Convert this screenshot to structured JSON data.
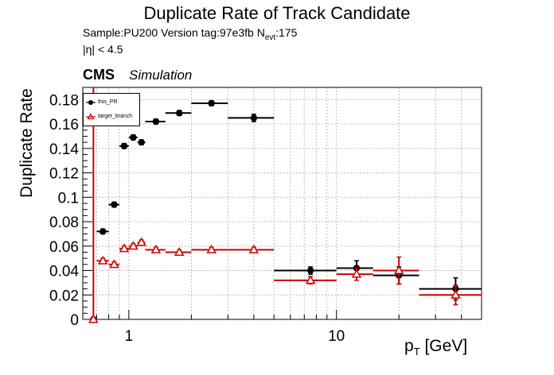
{
  "header": {
    "title": "Duplicate Rate of Track Candidate",
    "sample_label": "Sample:PU200   Version tag:97e3fb  N",
    "nevt_sub": "evt",
    "nevt_value": ":175",
    "eta_cut": "|η| < 4.5",
    "cms": "CMS",
    "simulation": "Simulation"
  },
  "colors": {
    "this_PR": "#000000",
    "target_branch": "#cc0000",
    "grid": "#bdbdbd"
  },
  "chart_data": {
    "type": "scatter",
    "title": "Duplicate Rate of Track Candidate",
    "xlabel": "p",
    "xlabel_sub": "T",
    "xlabel_unit": " [GeV]",
    "ylabel": "Duplicate Rate",
    "xscale": "log",
    "xlim": [
      0.6,
      50
    ],
    "ylim": [
      0,
      0.19
    ],
    "grid": true,
    "legend_position": "top-left",
    "yticks": [
      0,
      0.02,
      0.04,
      0.06,
      0.08,
      0.1,
      0.12,
      0.14,
      0.16,
      0.18
    ],
    "ytick_labels": [
      "0",
      "0.02",
      "0.04",
      "0.06",
      "0.08",
      "0.1",
      "0.12",
      "0.14",
      "0.16",
      "0.18"
    ],
    "xticks": [
      1,
      10
    ],
    "xtick_labels": [
      "1",
      "10"
    ],
    "series": [
      {
        "name": "this_PR",
        "marker": "circle",
        "points": [
          {
            "x": 0.675,
            "xlo": 0.65,
            "xhi": 0.7,
            "y": 0.0,
            "err": 0.0
          },
          {
            "x": 0.75,
            "xlo": 0.7,
            "xhi": 0.8,
            "y": 0.072,
            "err": 0.002
          },
          {
            "x": 0.85,
            "xlo": 0.8,
            "xhi": 0.9,
            "y": 0.094,
            "err": 0.002
          },
          {
            "x": 0.95,
            "xlo": 0.9,
            "xhi": 1.0,
            "y": 0.142,
            "err": 0.002
          },
          {
            "x": 1.05,
            "xlo": 1.0,
            "xhi": 1.1,
            "y": 0.149,
            "err": 0.002
          },
          {
            "x": 1.15,
            "xlo": 1.1,
            "xhi": 1.2,
            "y": 0.145,
            "err": 0.002
          },
          {
            "x": 1.35,
            "xlo": 1.2,
            "xhi": 1.5,
            "y": 0.162,
            "err": 0.002
          },
          {
            "x": 1.75,
            "xlo": 1.5,
            "xhi": 2.0,
            "y": 0.169,
            "err": 0.002
          },
          {
            "x": 2.5,
            "xlo": 2.0,
            "xhi": 3.0,
            "y": 0.177,
            "err": 0.002
          },
          {
            "x": 4.0,
            "xlo": 3.0,
            "xhi": 5.0,
            "y": 0.165,
            "err": 0.003
          },
          {
            "x": 7.5,
            "xlo": 5.0,
            "xhi": 10.0,
            "y": 0.04,
            "err": 0.003
          },
          {
            "x": 12.5,
            "xlo": 10.0,
            "xhi": 15.0,
            "y": 0.042,
            "err": 0.006
          },
          {
            "x": 20.0,
            "xlo": 15.0,
            "xhi": 25.0,
            "y": 0.036,
            "err": 0.007
          },
          {
            "x": 37.5,
            "xlo": 25.0,
            "xhi": 50.0,
            "y": 0.025,
            "err": 0.009
          }
        ]
      },
      {
        "name": "target_branch",
        "marker": "open-triangle",
        "points": [
          {
            "x": 0.675,
            "xlo": 0.65,
            "xhi": 0.7,
            "y": 0.0,
            "err": 0.26
          },
          {
            "x": 0.75,
            "xlo": 0.7,
            "xhi": 0.8,
            "y": 0.048,
            "err": 0.002
          },
          {
            "x": 0.85,
            "xlo": 0.8,
            "xhi": 0.9,
            "y": 0.045,
            "err": 0.002
          },
          {
            "x": 0.95,
            "xlo": 0.9,
            "xhi": 1.0,
            "y": 0.058,
            "err": 0.002
          },
          {
            "x": 1.05,
            "xlo": 1.0,
            "xhi": 1.1,
            "y": 0.06,
            "err": 0.002
          },
          {
            "x": 1.15,
            "xlo": 1.1,
            "xhi": 1.2,
            "y": 0.063,
            "err": 0.002
          },
          {
            "x": 1.35,
            "xlo": 1.2,
            "xhi": 1.5,
            "y": 0.057,
            "err": 0.002
          },
          {
            "x": 1.75,
            "xlo": 1.5,
            "xhi": 2.0,
            "y": 0.055,
            "err": 0.002
          },
          {
            "x": 2.5,
            "xlo": 2.0,
            "xhi": 3.0,
            "y": 0.057,
            "err": 0.002
          },
          {
            "x": 4.0,
            "xlo": 3.0,
            "xhi": 5.0,
            "y": 0.057,
            "err": 0.002
          },
          {
            "x": 7.5,
            "xlo": 5.0,
            "xhi": 10.0,
            "y": 0.032,
            "err": 0.003
          },
          {
            "x": 12.5,
            "xlo": 10.0,
            "xhi": 15.0,
            "y": 0.037,
            "err": 0.005
          },
          {
            "x": 20.0,
            "xlo": 15.0,
            "xhi": 25.0,
            "y": 0.04,
            "err": 0.011
          },
          {
            "x": 37.5,
            "xlo": 25.0,
            "xhi": 50.0,
            "y": 0.02,
            "err": 0.008
          }
        ]
      }
    ]
  }
}
